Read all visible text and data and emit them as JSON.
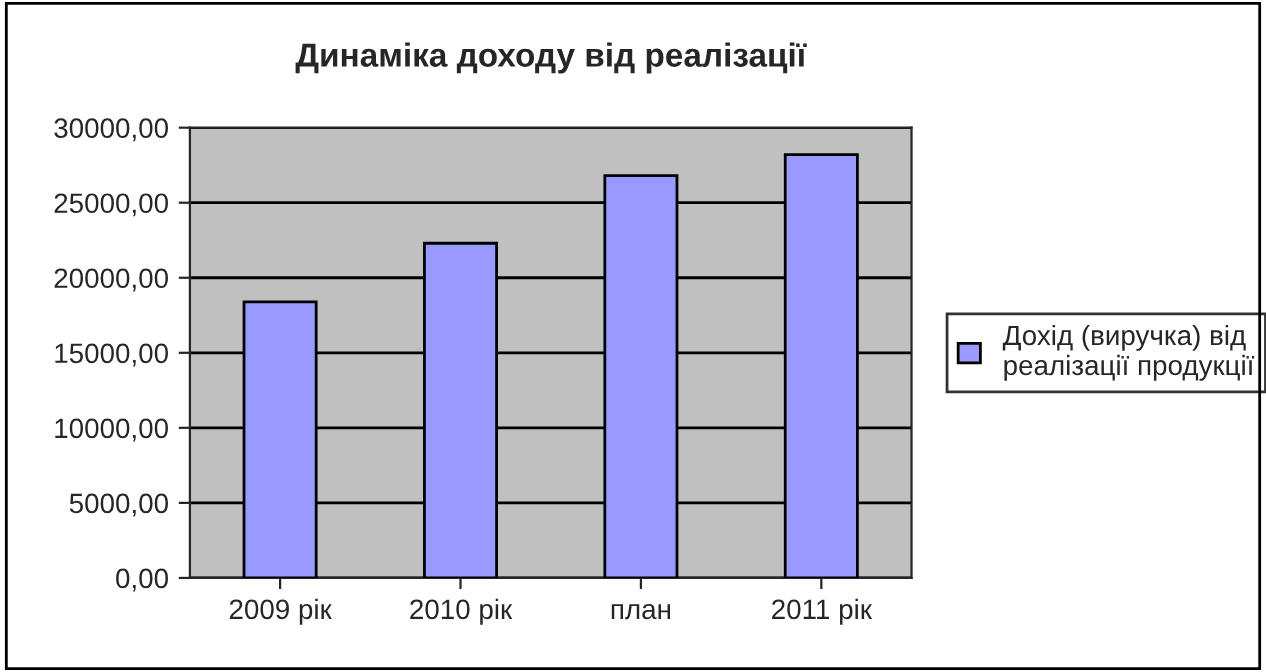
{
  "chart_data": {
    "type": "bar",
    "title": "Динаміка доходу від реалізації",
    "categories": [
      "2009 рік",
      "2010 рік",
      "план",
      "2011 рік"
    ],
    "series": [
      {
        "name": "Дохід (виручка) від реалізації продукції",
        "color": "#9999ff",
        "values": [
          18400,
          22300,
          26800,
          28200
        ]
      }
    ],
    "ylim": [
      0,
      30000
    ],
    "yticks": [
      {
        "value": 0,
        "label": "0,00"
      },
      {
        "value": 5000,
        "label": "5000,00"
      },
      {
        "value": 10000,
        "label": "10000,00"
      },
      {
        "value": 15000,
        "label": "15000,00"
      },
      {
        "value": 20000,
        "label": "20000,00"
      },
      {
        "value": 25000,
        "label": "25000,00"
      },
      {
        "value": 30000,
        "label": "30000,00"
      }
    ],
    "grid": "y",
    "legend": "right"
  }
}
